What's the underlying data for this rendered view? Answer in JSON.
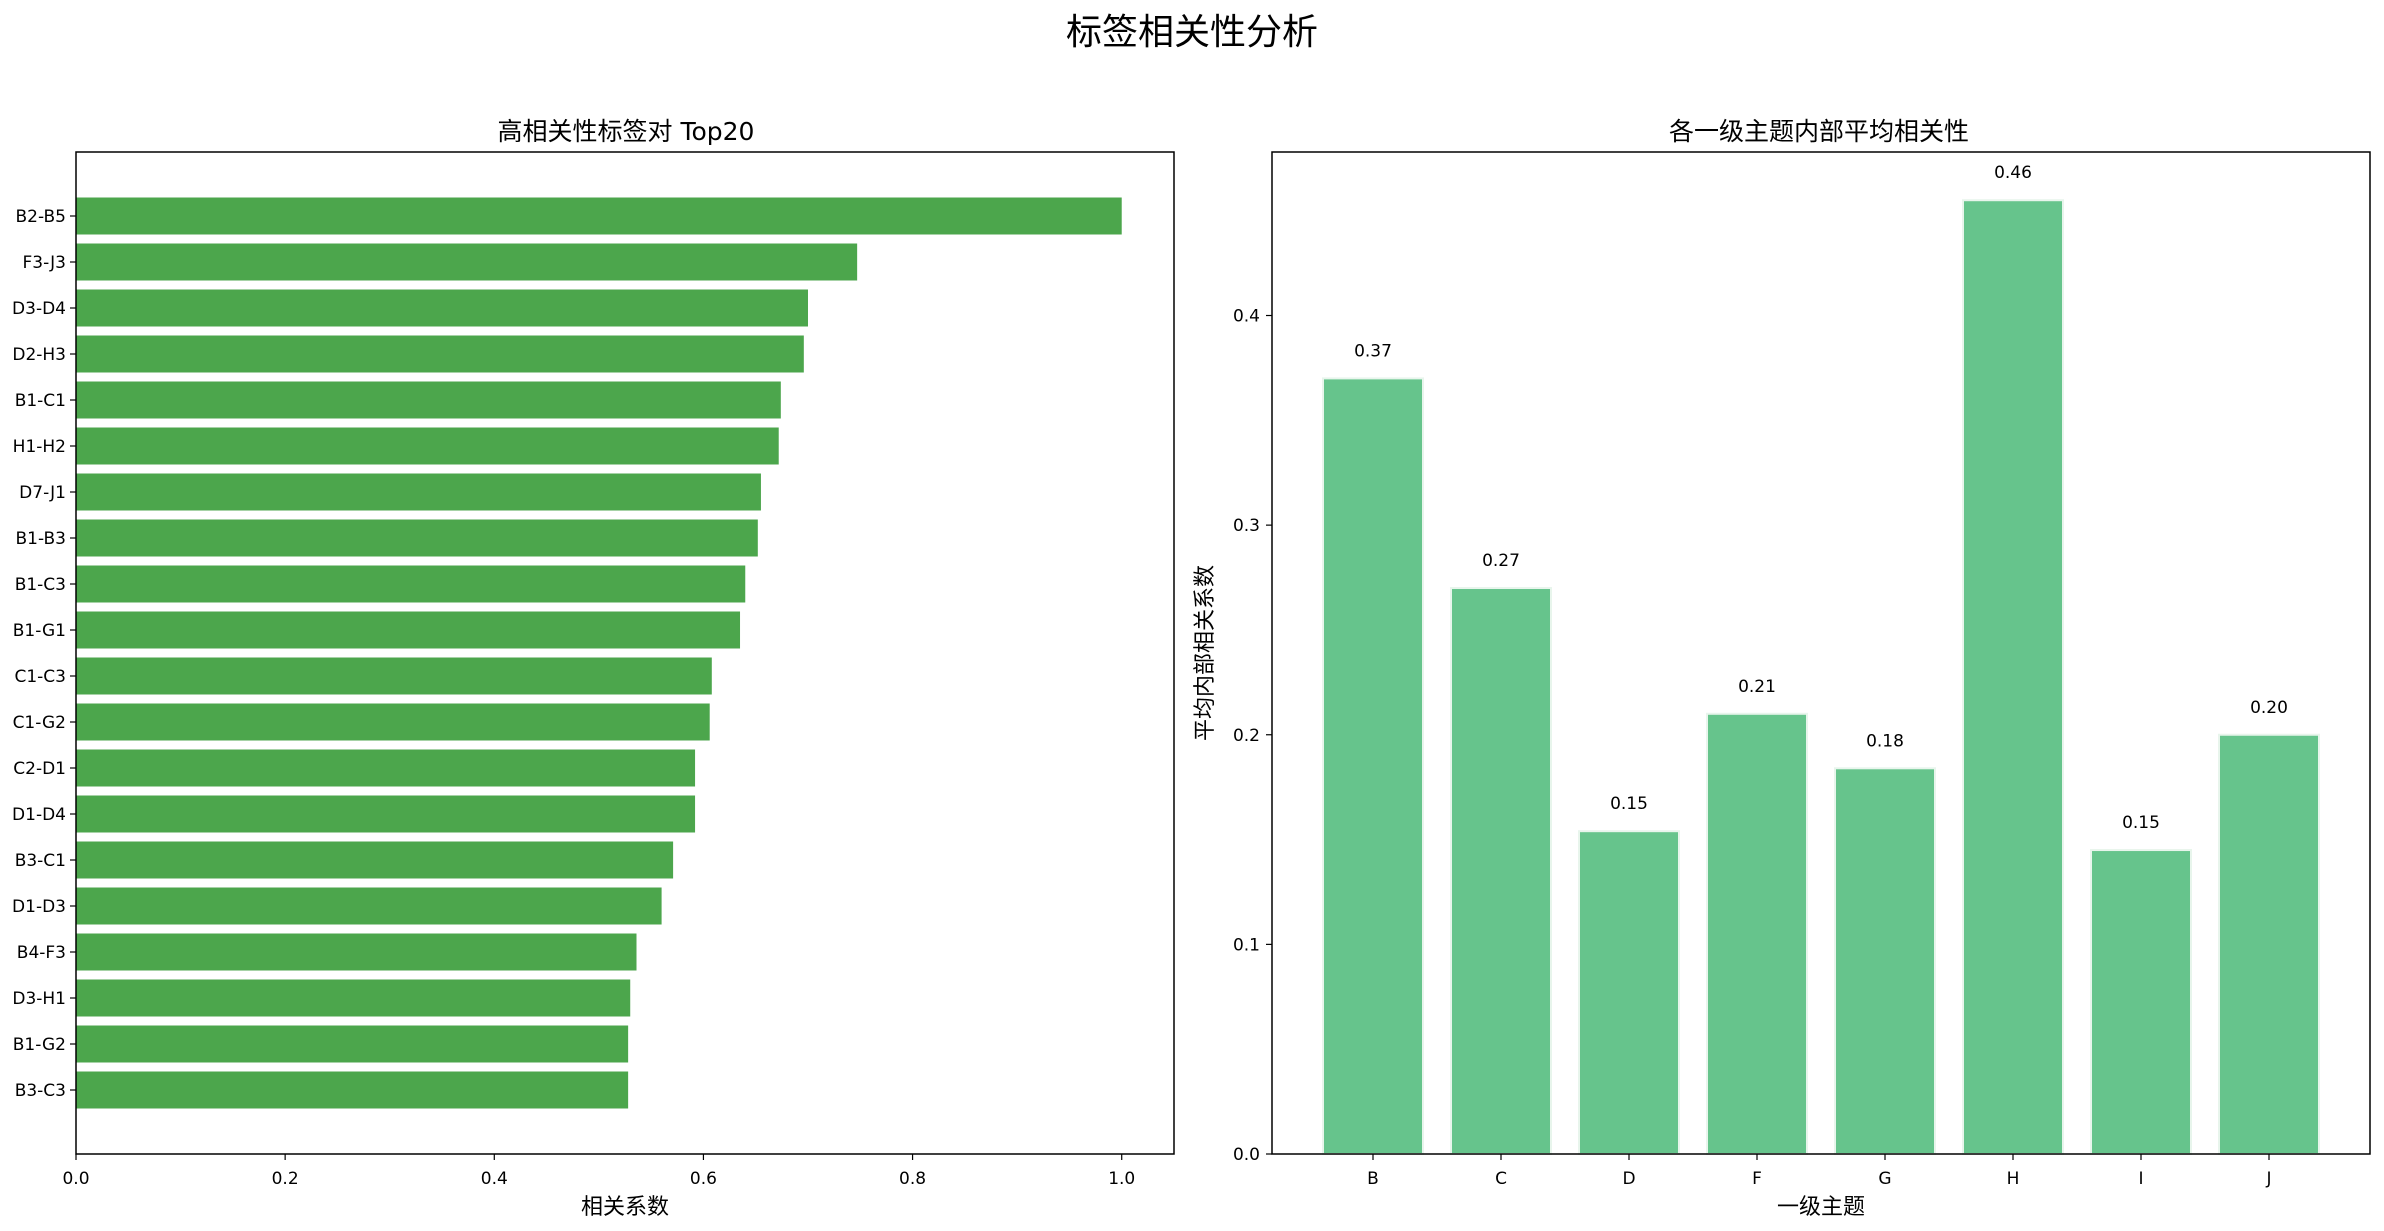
{
  "figure": {
    "title": "标签相关性分析"
  },
  "chart_data": [
    {
      "type": "bar",
      "orientation": "horizontal",
      "title": "高相关性标签对 Top20",
      "xlabel": "相关系数",
      "ylabel": "",
      "xlim": [
        0.0,
        1.05
      ],
      "xticks": [
        "0.0",
        "0.2",
        "0.4",
        "0.6",
        "0.8",
        "1.0"
      ],
      "grid": false,
      "color": "#4ca64c",
      "categories": [
        "B2-B5",
        "F3-J3",
        "D3-D4",
        "D2-H3",
        "B1-C1",
        "H1-H2",
        "D7-J1",
        "B1-B3",
        "B1-C3",
        "B1-G1",
        "C1-C3",
        "C1-G2",
        "C2-D1",
        "D1-D4",
        "B3-C1",
        "D1-D3",
        "B4-F3",
        "D3-H1",
        "B1-G2",
        "B3-C3"
      ],
      "values": [
        1.0,
        0.747,
        0.7,
        0.696,
        0.674,
        0.672,
        0.655,
        0.652,
        0.64,
        0.635,
        0.608,
        0.606,
        0.592,
        0.592,
        0.571,
        0.56,
        0.536,
        0.53,
        0.528,
        0.528
      ]
    },
    {
      "type": "bar",
      "title": "各一级主题内部平均相关性",
      "xlabel": "一级主题",
      "ylabel": "平均内部相关系数",
      "ylim": [
        0.0,
        0.478
      ],
      "yticks": [
        "0.0",
        "0.1",
        "0.2",
        "0.3",
        "0.4"
      ],
      "grid": false,
      "color": "#66c48c",
      "edge_color": "#e8f5ec",
      "categories": [
        "B",
        "C",
        "D",
        "F",
        "G",
        "H",
        "I",
        "J"
      ],
      "values": [
        0.37,
        0.27,
        0.154,
        0.21,
        0.184,
        0.455,
        0.145,
        0.2
      ],
      "data_labels": [
        "0.37",
        "0.27",
        "0.15",
        "0.21",
        "0.18",
        "0.46",
        "0.15",
        "0.20"
      ]
    }
  ]
}
